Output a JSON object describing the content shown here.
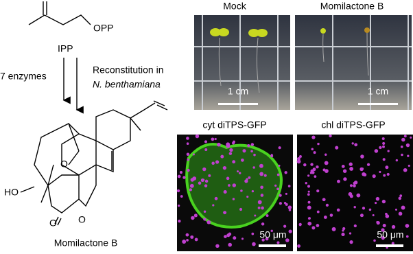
{
  "scheme": {
    "leaving_group": "OPP",
    "substrate": "IPP",
    "left_arrow_label": "7 enzymes",
    "right_arrow_label": [
      "Reconstitution in",
      "N. benthamiana"
    ],
    "product_atoms": [
      "HO",
      "O",
      "O",
      "O"
    ],
    "product": "Momilactone B"
  },
  "panels": [
    {
      "label": "Mock",
      "scale_bar": "1 cm"
    },
    {
      "label": "Momilactone B",
      "scale_bar": "1 cm"
    },
    {
      "label": "cyt diTPS-GFP",
      "scale_bar": "50 μm"
    },
    {
      "label": "chl diTPS-GFP",
      "scale_bar": "50 μm"
    }
  ]
}
